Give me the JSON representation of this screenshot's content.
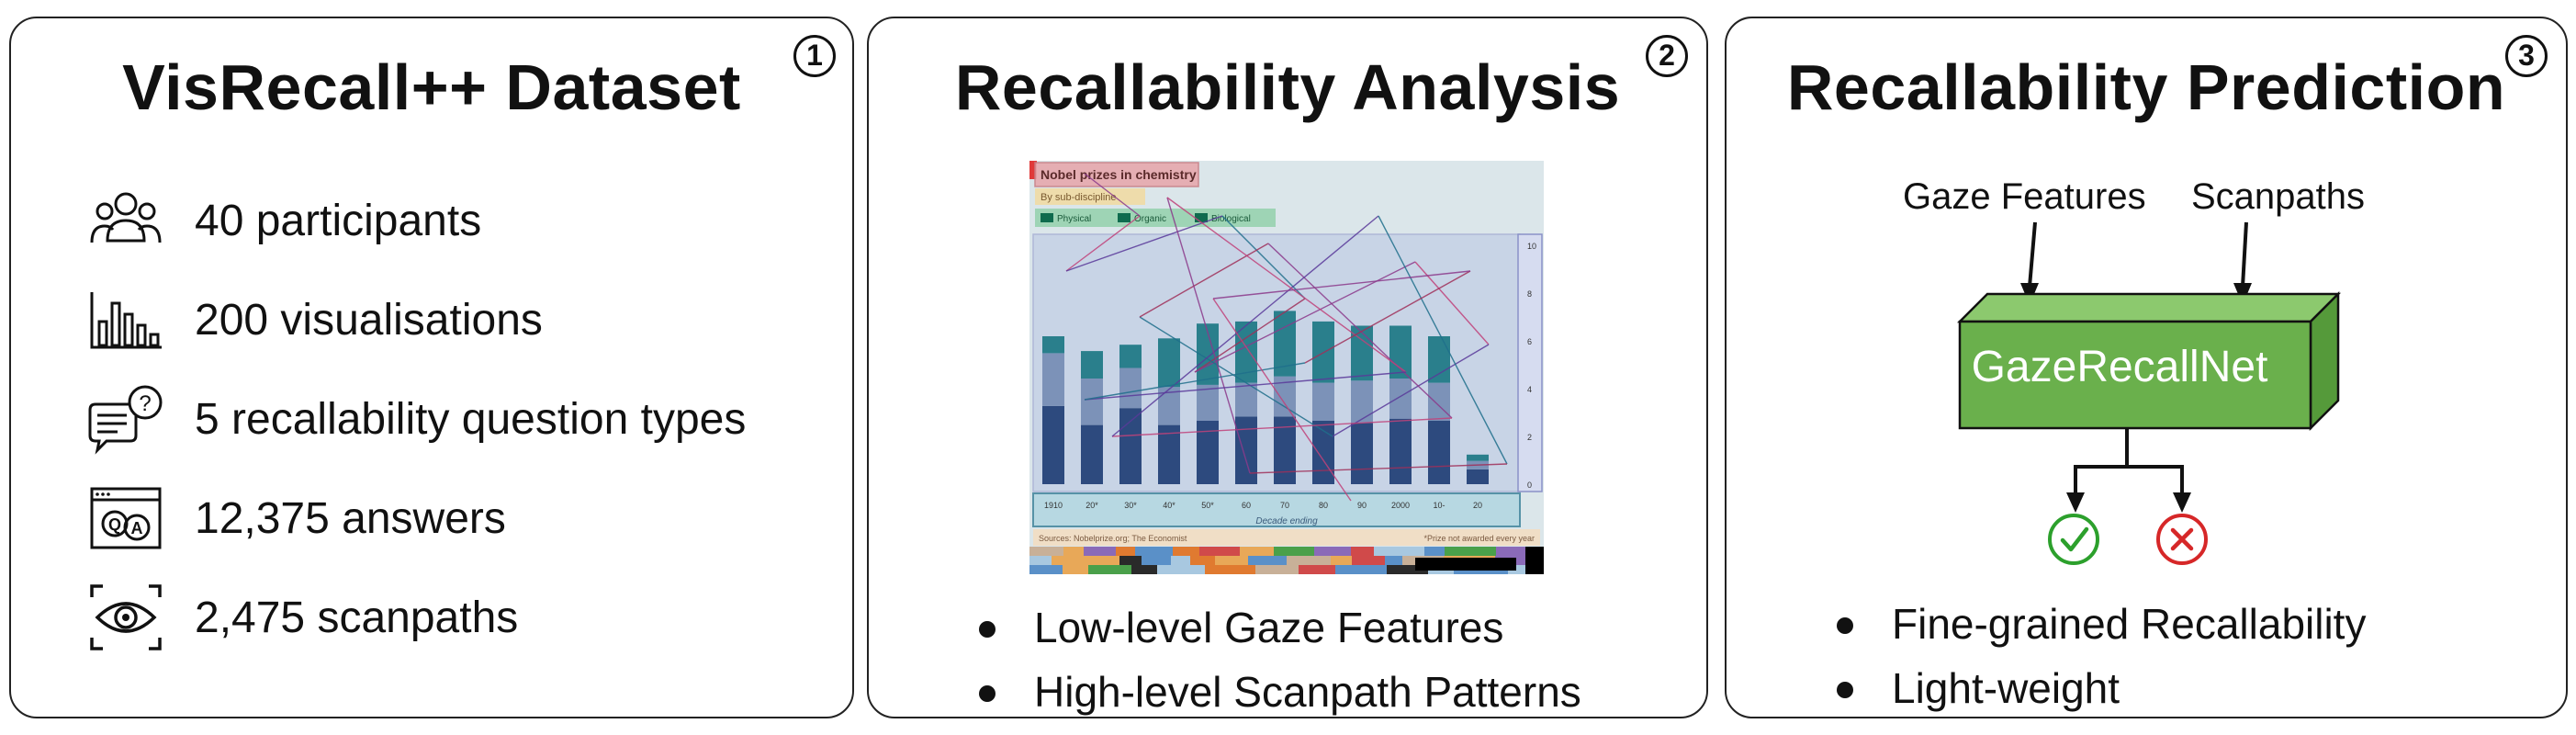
{
  "panel1": {
    "number": "1",
    "title": "VisRecall++ Dataset",
    "stats": [
      {
        "icon": "participants-icon",
        "label": "40 participants"
      },
      {
        "icon": "bar-chart-icon",
        "label": "200 visualisations"
      },
      {
        "icon": "question-bubble-icon",
        "label": "5 recallability question types"
      },
      {
        "icon": "qa-window-icon",
        "label": "12,375 answers"
      },
      {
        "icon": "eye-icon",
        "label": "2,475 scanpaths"
      }
    ]
  },
  "panel2": {
    "number": "2",
    "title": "Recallability Analysis",
    "viz": {
      "title": "Nobel prizes in chemistry",
      "subtitle": "By sub-discipline",
      "legend": [
        "Physical",
        "Organic",
        "Biological"
      ],
      "categories": [
        "1910",
        "20*",
        "30*",
        "40*",
        "50*",
        "60",
        "70",
        "80",
        "90",
        "2000",
        "10-",
        "20"
      ],
      "x_axis_label": "Decade ending",
      "y_ticks": [
        "10",
        "8",
        "6",
        "4",
        "2",
        "0"
      ],
      "source": "Sources: Nobelprize.org; The Economist",
      "footnote": "*Prize not awarded every year",
      "series_colors": {
        "Physical": "#2d4a7e",
        "Organic": "#7c92b8",
        "Biological": "#2a7f8c"
      }
    },
    "bullets": [
      "Low-level Gaze Features",
      "High-level Scanpath Patterns"
    ]
  },
  "panel3": {
    "number": "3",
    "title": "Recallability Prediction",
    "inputs": [
      "Gaze Features",
      "Scanpaths"
    ],
    "model_name": "GazeRecallNet",
    "model_color": "#6ab04c",
    "outputs": [
      {
        "icon": "check-circle-icon",
        "color": "#2ca02c"
      },
      {
        "icon": "cross-circle-icon",
        "color": "#d62728"
      }
    ],
    "bullets": [
      "Fine-grained Recallability",
      "Light-weight"
    ]
  }
}
